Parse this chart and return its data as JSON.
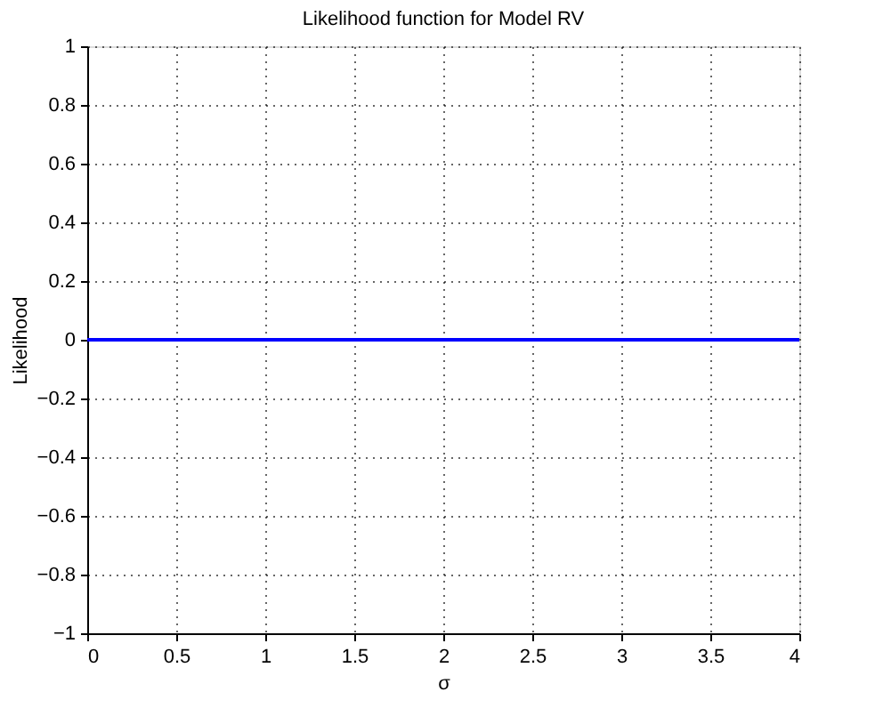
{
  "chart_data": {
    "type": "line",
    "title": "Likelihood function for Model RV",
    "xlabel": "σ",
    "ylabel": "Likelihood",
    "x": [
      0,
      4
    ],
    "series": [
      {
        "color": "#0000ff",
        "values": [
          0,
          0
        ]
      }
    ],
    "xlim": [
      0,
      4
    ],
    "xticks": [
      0,
      0.5,
      1,
      1.5,
      2,
      2.5,
      3,
      3.5,
      4
    ],
    "ylim": [
      -1,
      1
    ],
    "yticks": [
      -1,
      -0.8,
      -0.6,
      -0.4,
      -0.2,
      0,
      0.2,
      0.4,
      0.6,
      0.8,
      1
    ],
    "grid": true,
    "line_style": "solid",
    "marker": "none"
  }
}
